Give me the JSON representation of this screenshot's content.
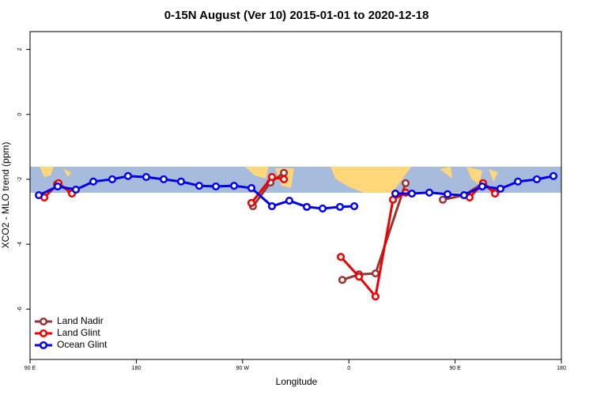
{
  "chart_data": {
    "type": "line",
    "title": "0-15N August (Ver 10)   2015-01-01 to 2020-12-18",
    "x_label": "Longitude",
    "y_label": "XCO2 - MLO trend (ppm)",
    "xlim": [
      90,
      540
    ],
    "ylim": [
      -7.55,
      2.55
    ],
    "xticks": [
      {
        "value": 90,
        "label": "90 E"
      },
      180,
      {
        "value": 270,
        "label": "90 W"
      },
      {
        "value": 360,
        "label": "0"
      },
      {
        "value": 450,
        "label": "90 E"
      },
      {
        "value": 540,
        "label": "180"
      }
    ],
    "yticks": [
      -6,
      -4,
      -2,
      0,
      2
    ],
    "legend": "bottom-left",
    "series": [
      {
        "name": "Land Nadir",
        "color": "#993333",
        "x": [
          112.8,
          124.8,
          null,
          278.8,
          293.6,
          305,
          null,
          354.5,
          368.6,
          382.6,
          408.1,
          null,
          439.6,
          457.6,
          473.7,
          484.4
        ],
        "values": [
          -2.15,
          -2.37,
          null,
          -2.83,
          -2.1,
          -1.8,
          null,
          -5.1,
          -4.93,
          -4.9,
          -2.12,
          null,
          -2.63,
          -2.49,
          -2.12,
          -2.39
        ]
      },
      {
        "name": "Land Glint",
        "color": "#ee0000",
        "x": [
          102.1,
          114.1,
          125.5,
          null,
          277.5,
          294.9,
          305,
          null,
          353.2,
          368.6,
          382.6,
          397.4,
          408.1,
          null,
          462.3,
          473.7,
          483.8
        ],
        "values": [
          -2.56,
          -2.12,
          -2.44,
          null,
          -2.73,
          -1.93,
          -2.0,
          null,
          -4.39,
          -5.0,
          -5.61,
          -2.63,
          -2.41,
          null,
          -2.56,
          -2.12,
          -2.44
        ]
      },
      {
        "name": "Ocean Glint",
        "color": "#0000ee",
        "x": [
          97.4,
          113.4,
          128.8,
          143.6,
          159.6,
          173,
          188.4,
          203.2,
          217.9,
          233.3,
          247.4,
          262.8,
          277.5,
          294.9,
          309.6,
          324.4,
          337.8,
          352.5,
          364.6,
          null,
          399.4,
          413.4,
          428.2,
          443.6,
          457.6,
          473,
          488.4,
          503.2,
          519.2,
          533.3
        ],
        "values": [
          -2.49,
          -2.22,
          -2.32,
          -2.07,
          -2.0,
          -1.9,
          -1.93,
          -2.0,
          -2.07,
          -2.2,
          -2.22,
          -2.2,
          -2.27,
          -2.83,
          -2.66,
          -2.85,
          -2.9,
          -2.85,
          -2.83,
          null,
          -2.44,
          -2.44,
          -2.41,
          -2.46,
          -2.49,
          -2.22,
          -2.29,
          -2.07,
          -2.0,
          -1.9
        ]
      }
    ]
  }
}
